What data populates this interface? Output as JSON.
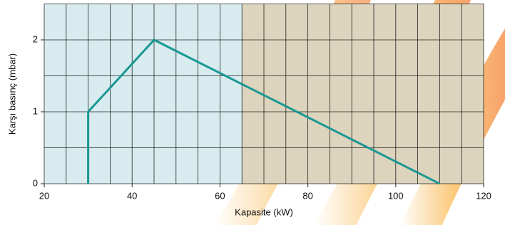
{
  "chart_data": {
    "type": "line",
    "x": [
      30,
      30,
      45,
      110
    ],
    "values": [
      0,
      1,
      2,
      0
    ],
    "color": "#1a9893",
    "xlabel": "Kapasite (kW)",
    "ylabel": "Karşı basınç (mbar)",
    "xlim": [
      20,
      120
    ],
    "ylim": [
      0,
      2.5
    ],
    "xticks": [
      20,
      40,
      60,
      80,
      100,
      120
    ],
    "yticks": [
      0,
      1,
      2
    ],
    "xgrid": [
      20,
      25,
      30,
      35,
      40,
      45,
      50,
      55,
      60,
      65,
      70,
      75,
      80,
      85,
      90,
      95,
      100,
      105,
      110,
      115,
      120
    ],
    "ygrid": [
      0,
      0.5,
      1,
      1.5,
      2,
      2.5
    ],
    "grid": true
  }
}
